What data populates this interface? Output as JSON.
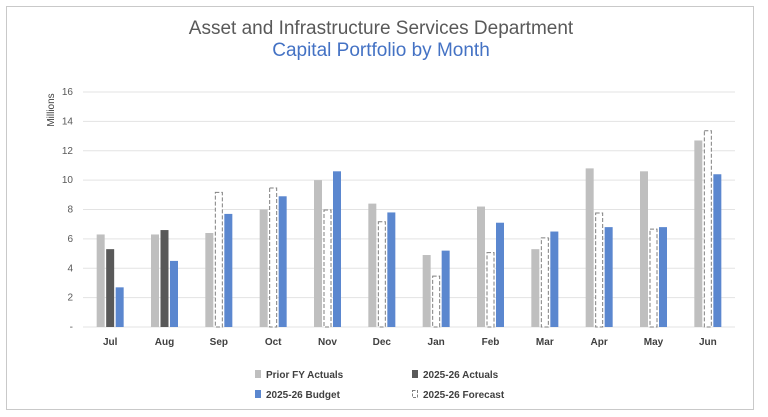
{
  "chart_data": {
    "type": "bar",
    "title": "Asset and Infrastructure Services Department",
    "subtitle": "Capital Portfolio by Month",
    "ylabel": "Millions",
    "ylim": [
      0,
      16
    ],
    "yticks": [
      "-",
      "2",
      "4",
      "6",
      "8",
      "10",
      "12",
      "14",
      "16"
    ],
    "grid": true,
    "legend": "bottom",
    "categories": [
      "Jul",
      "Aug",
      "Sep",
      "Oct",
      "Nov",
      "Dec",
      "Jan",
      "Feb",
      "Mar",
      "Apr",
      "May",
      "Jun"
    ],
    "series": [
      {
        "name": "Prior FY Actuals",
        "color": "#bfbfbf",
        "style": "solid",
        "values": [
          6.3,
          6.3,
          6.4,
          8.0,
          10.0,
          8.4,
          4.9,
          8.2,
          5.3,
          10.8,
          10.6,
          12.7
        ]
      },
      {
        "name": "2025-26 Actuals",
        "color": "#595959",
        "style": "solid",
        "values": [
          5.3,
          6.6,
          null,
          null,
          null,
          null,
          null,
          null,
          null,
          null,
          null,
          null
        ]
      },
      {
        "name": "2025-26 Forecast",
        "color": "#7f7f7f",
        "style": "dashed",
        "values": [
          null,
          null,
          9.2,
          9.5,
          8.0,
          7.2,
          3.5,
          5.1,
          6.1,
          7.8,
          6.7,
          13.4
        ]
      },
      {
        "name": "2025-26 Budget",
        "color": "#5b87cf",
        "style": "solid",
        "values": [
          2.7,
          4.5,
          7.7,
          8.9,
          10.6,
          7.8,
          5.2,
          7.1,
          6.5,
          6.8,
          6.8,
          10.4
        ]
      }
    ]
  }
}
